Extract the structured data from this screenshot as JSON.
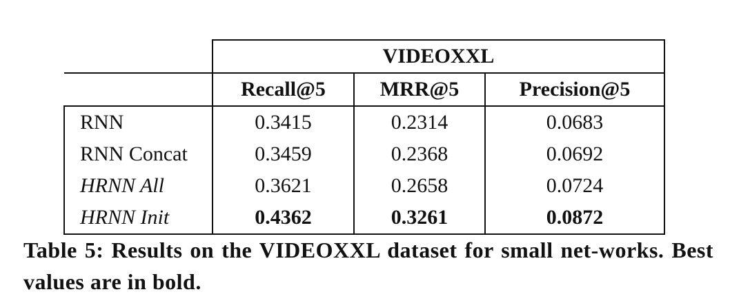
{
  "table": {
    "group_header": "VIDEOXXL",
    "columns": [
      "Recall@5",
      "MRR@5",
      "Precision@5"
    ],
    "rows": [
      [
        "RNN",
        "0.3415",
        "0.2314",
        "0.0683"
      ],
      [
        "RNN Concat",
        "0.3459",
        "0.2368",
        "0.0692"
      ],
      [
        "HRNN All",
        "0.3621",
        "0.2658",
        "0.0724"
      ],
      [
        "HRNN Init",
        "0.4362",
        "0.3261",
        "0.0872"
      ]
    ]
  },
  "caption": "Table 5: Results on the VIDEOXXL dataset for small net-works. Best values are in bold."
}
